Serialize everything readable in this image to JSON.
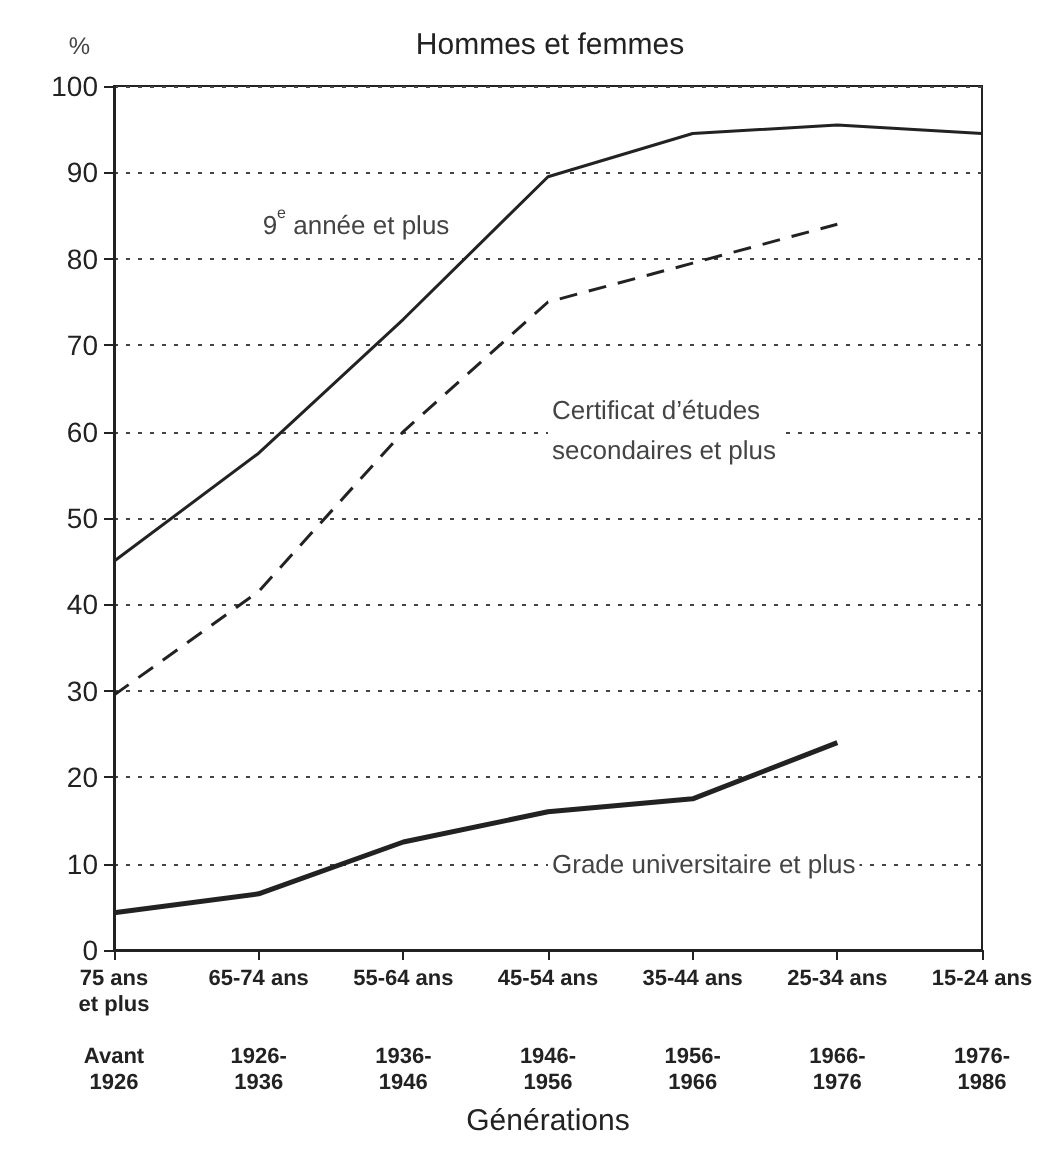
{
  "chart_data": {
    "type": "line",
    "title": "Hommes et femmes",
    "xlabel": "Générations",
    "ylabel": "%",
    "categories": [
      "75 ans\net plus\n\nAvant\n1926",
      "65-74 ans\n\n\n1926-\n1936",
      "55-64 ans\n\n\n1936-\n1946",
      "45-54 ans\n\n\n1946-\n1956",
      "35-44 ans\n\n\n1956-\n1966",
      "25-34 ans\n\n\n1966-\n1976",
      "15-24 ans\n\n\n1976-\n1986"
    ],
    "series": [
      {
        "name": "9$^{e}$ année et plus",
        "color": "#222222",
        "line_style": "solid",
        "values": [
          45,
          57.5,
          73,
          89.5,
          94.5,
          95.5,
          94.5
        ]
      },
      {
        "name": "Certificat d’études\nsecondaires et plus",
        "color": "#222222",
        "line_style": "dashed",
        "values": [
          29.5,
          41.5,
          60,
          75,
          79.5,
          84,
          null
        ]
      },
      {
        "name": "Grade universitaire et plus",
        "color": "#222222",
        "line_style": "solid",
        "values": [
          4.3,
          6.5,
          12.5,
          16,
          17.5,
          24,
          null
        ]
      }
    ],
    "ylim": [
      0,
      100
    ],
    "yticks": [
      0,
      10,
      20,
      30,
      40,
      50,
      60,
      70,
      80,
      90,
      100
    ],
    "grid": "y",
    "legend": false,
    "marker": "none"
  }
}
